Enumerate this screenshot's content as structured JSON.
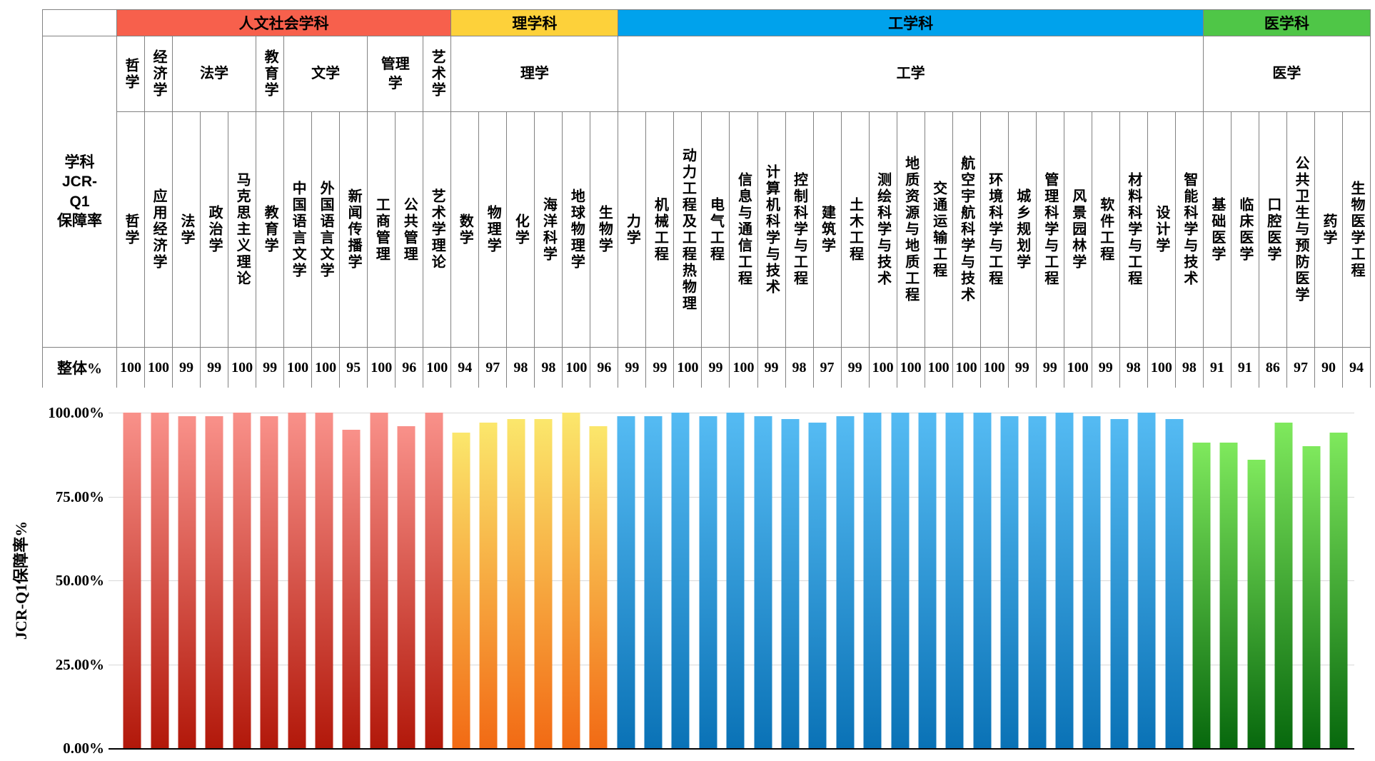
{
  "table": {
    "corner": "",
    "row_header_lines": [
      "学科",
      "JCR-",
      "Q1",
      "保障率"
    ],
    "overall_label": "整体%"
  },
  "chart_data": {
    "type": "bar",
    "title": "",
    "xlabel": "",
    "ylabel": "JCR-Q1保障率%",
    "ylim": [
      0,
      100
    ],
    "grid": true,
    "legend": false,
    "grid_color": "#D9D9D9",
    "axis_color": "#000000",
    "yticks": [
      {
        "label": "100.00%",
        "pct": 100
      },
      {
        "label": "75.00%",
        "pct": 75
      },
      {
        "label": "50.00%",
        "pct": 50
      },
      {
        "label": "25.00%",
        "pct": 25
      },
      {
        "label": "0.00%",
        "pct": 0
      }
    ],
    "categories": [
      "哲学",
      "应用经济学",
      "法学",
      "政治学",
      "马克思主义理论",
      "教育学",
      "中国语言文学",
      "外国语言文学",
      "新闻传播学",
      "工商管理",
      "公共管理",
      "艺术学理论",
      "数学",
      "物理学",
      "化学",
      "海洋科学",
      "地球物理学",
      "生物学",
      "力学",
      "机械工程",
      "动力工程及工程热物理",
      "电气工程",
      "信息与通信工程",
      "计算机科学与技术",
      "控制科学与工程",
      "建筑学",
      "土木工程",
      "测绘科学与技术",
      "地质资源与地质工程",
      "交通运输工程",
      "航空宇航科学与技术",
      "环境科学与工程",
      "城乡规划学",
      "管理科学与工程",
      "风景园林学",
      "软件工程",
      "材料科学与工程",
      "设计学",
      "智能科学与技术",
      "基础医学",
      "临床医学",
      "口腔医学",
      "公共卫生与预防医学",
      "药学",
      "生物医学工程"
    ],
    "values": [
      100,
      100,
      99,
      99,
      100,
      99,
      100,
      100,
      95,
      100,
      96,
      100,
      94,
      97,
      98,
      98,
      100,
      96,
      99,
      99,
      100,
      99,
      100,
      99,
      98,
      97,
      99,
      100,
      100,
      100,
      100,
      100,
      99,
      99,
      100,
      99,
      98,
      100,
      98,
      91,
      91,
      86,
      97,
      90,
      94
    ],
    "groups": [
      {
        "label": "人文社会学科",
        "header_color": "#F7604C",
        "bar_gradient": [
          "#F9918A",
          "#B2180A"
        ],
        "subgroups": [
          {
            "label": "哲学",
            "orient": "v",
            "items": [
              {
                "name": "哲学",
                "overall_pct": 100
              }
            ]
          },
          {
            "label": "经济学",
            "orient": "v",
            "items": [
              {
                "name": "应用经济学",
                "overall_pct": 100
              }
            ]
          },
          {
            "label": "法学",
            "orient": "h",
            "items": [
              {
                "name": "法学",
                "overall_pct": 99
              },
              {
                "name": "政治学",
                "overall_pct": 99
              },
              {
                "name": "马克思主义理论",
                "overall_pct": 100
              }
            ]
          },
          {
            "label": "教育学",
            "orient": "v",
            "items": [
              {
                "name": "教育学",
                "overall_pct": 99
              }
            ]
          },
          {
            "label": "文学",
            "orient": "h",
            "items": [
              {
                "name": "中国语言文学",
                "overall_pct": 100
              },
              {
                "name": "外国语言文学",
                "overall_pct": 100
              },
              {
                "name": "新闻传播学",
                "overall_pct": 95
              }
            ]
          },
          {
            "label": "管理学",
            "orient": "h",
            "items": [
              {
                "name": "工商管理",
                "overall_pct": 100
              },
              {
                "name": "公共管理",
                "overall_pct": 96
              }
            ]
          },
          {
            "label": "艺术学",
            "orient": "v",
            "items": [
              {
                "name": "艺术学理论",
                "overall_pct": 100
              }
            ]
          }
        ]
      },
      {
        "label": "理学科",
        "header_color": "#FDD13A",
        "bar_gradient": [
          "#FBE76C",
          "#F26A14"
        ],
        "subgroups": [
          {
            "label": "理学",
            "orient": "h",
            "items": [
              {
                "name": "数学",
                "overall_pct": 94
              },
              {
                "name": "物理学",
                "overall_pct": 97
              },
              {
                "name": "化学",
                "overall_pct": 98
              },
              {
                "name": "海洋科学",
                "overall_pct": 98
              },
              {
                "name": "地球物理学",
                "overall_pct": 100
              },
              {
                "name": "生物学",
                "overall_pct": 96
              }
            ]
          }
        ]
      },
      {
        "label": "工学科",
        "header_color": "#00A2EC",
        "bar_gradient": [
          "#55BBF3",
          "#0A72B6"
        ],
        "subgroups": [
          {
            "label": "工学",
            "orient": "h",
            "items": [
              {
                "name": "力学",
                "overall_pct": 99
              },
              {
                "name": "机械工程",
                "overall_pct": 99
              },
              {
                "name": "动力工程及工程热物理",
                "overall_pct": 100
              },
              {
                "name": "电气工程",
                "overall_pct": 99
              },
              {
                "name": "信息与通信工程",
                "overall_pct": 100
              },
              {
                "name": "计算机科学与技术",
                "overall_pct": 99
              },
              {
                "name": "控制科学与工程",
                "overall_pct": 98
              },
              {
                "name": "建筑学",
                "overall_pct": 97
              },
              {
                "name": "土木工程",
                "overall_pct": 99
              },
              {
                "name": "测绘科学与技术",
                "overall_pct": 100
              },
              {
                "name": "地质资源与地质工程",
                "overall_pct": 100
              },
              {
                "name": "交通运输工程",
                "overall_pct": 100
              },
              {
                "name": "航空宇航科学与技术",
                "overall_pct": 100
              },
              {
                "name": "环境科学与工程",
                "overall_pct": 100
              },
              {
                "name": "城乡规划学",
                "overall_pct": 99
              },
              {
                "name": "管理科学与工程",
                "overall_pct": 99
              },
              {
                "name": "风景园林学",
                "overall_pct": 100
              },
              {
                "name": "软件工程",
                "overall_pct": 99
              },
              {
                "name": "材料科学与工程",
                "overall_pct": 98
              },
              {
                "name": "设计学",
                "overall_pct": 100
              },
              {
                "name": "智能科学与技术",
                "overall_pct": 98
              }
            ]
          }
        ]
      },
      {
        "label": "医学科",
        "header_color": "#4FC647",
        "bar_gradient": [
          "#7FE95D",
          "#07680D"
        ],
        "subgroups": [
          {
            "label": "医学",
            "orient": "h",
            "items": [
              {
                "name": "基础医学",
                "overall_pct": 91
              },
              {
                "name": "临床医学",
                "overall_pct": 91
              },
              {
                "name": "口腔医学",
                "overall_pct": 86
              },
              {
                "name": "公共卫生与预防医学",
                "overall_pct": 97
              },
              {
                "name": "药学",
                "overall_pct": 90
              },
              {
                "name": "生物医学工程",
                "overall_pct": 94
              }
            ]
          }
        ]
      }
    ]
  }
}
